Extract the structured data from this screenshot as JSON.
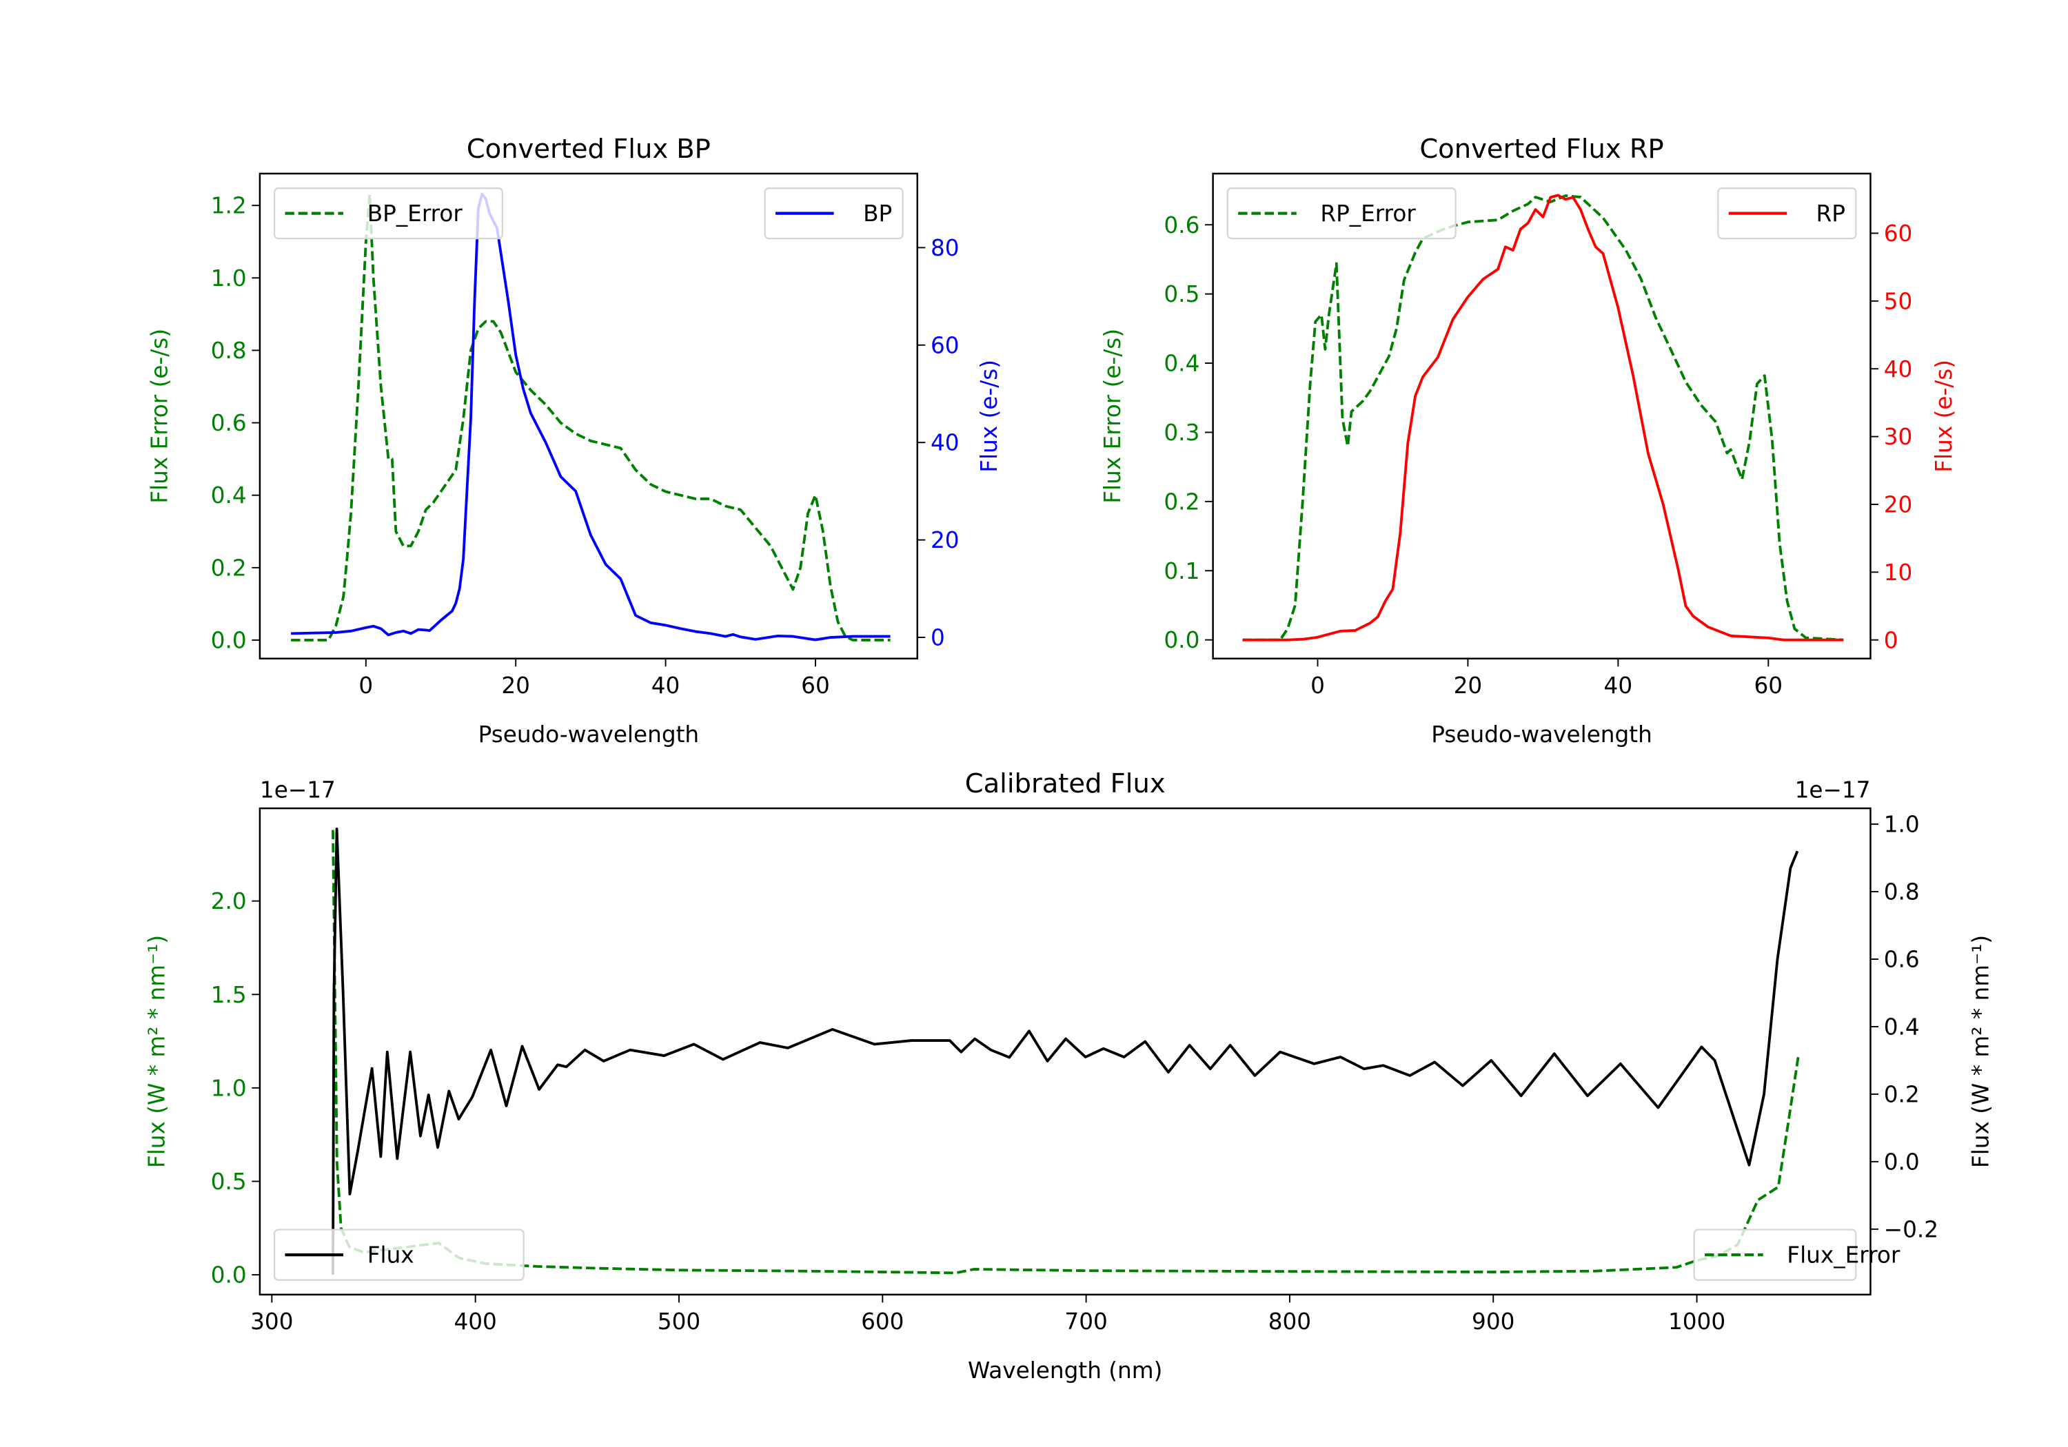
{
  "chart_data": [
    {
      "id": "bp",
      "type": "line",
      "title": "Converted Flux BP",
      "xlabel": "Pseudo-wavelength",
      "ylabel_left": "Flux Error (e-/s)",
      "ylabel_right": "Flux (e-/s)",
      "left_color": "#008000",
      "right_color": "#0000ff",
      "xlim": [
        -14.16,
        73.6
      ],
      "ylim_left": [
        -0.051,
        1.288
      ],
      "ylim_right": [
        -4.35,
        95.2
      ],
      "xticks": [
        {
          "v": 0,
          "label": "0"
        },
        {
          "v": 20,
          "label": "20"
        },
        {
          "v": 40,
          "label": "40"
        },
        {
          "v": 60,
          "label": "60"
        }
      ],
      "yticks_left": [
        {
          "v": 0,
          "label": "0.0"
        },
        {
          "v": 0.2,
          "label": "0.2"
        },
        {
          "v": 0.4,
          "label": "0.4"
        },
        {
          "v": 0.6,
          "label": "0.6"
        },
        {
          "v": 0.8,
          "label": "0.8"
        },
        {
          "v": 1.0,
          "label": "1.0"
        },
        {
          "v": 1.2,
          "label": "1.2"
        }
      ],
      "yticks_right": [
        {
          "v": 0,
          "label": "0"
        },
        {
          "v": 20,
          "label": "20"
        },
        {
          "v": 40,
          "label": "40"
        },
        {
          "v": 60,
          "label": "60"
        },
        {
          "v": 80,
          "label": "80"
        }
      ],
      "series": [
        {
          "name": "BP_Error",
          "axis": "left",
          "style": "dashed",
          "color": "#008000",
          "legend": "upper-left",
          "x": [
            -10,
            -5,
            -4,
            -3,
            -2.5,
            -2,
            -1,
            0,
            0.5,
            1,
            2,
            3,
            3.5,
            4,
            5,
            6,
            7,
            8,
            9,
            10,
            11,
            12,
            13,
            14,
            15,
            16,
            17,
            18,
            20,
            22,
            24,
            26,
            28,
            30,
            32,
            34,
            36,
            38,
            40,
            42,
            44,
            46,
            48,
            50,
            52,
            54,
            56,
            57,
            58,
            59,
            60,
            61,
            62,
            63,
            64,
            65,
            70
          ],
          "y": [
            0,
            0,
            0.04,
            0.12,
            0.23,
            0.35,
            0.7,
            1.1,
            1.23,
            1.0,
            0.7,
            0.5,
            0.5,
            0.3,
            0.26,
            0.26,
            0.3,
            0.36,
            0.38,
            0.41,
            0.44,
            0.47,
            0.61,
            0.8,
            0.86,
            0.88,
            0.88,
            0.85,
            0.74,
            0.69,
            0.65,
            0.6,
            0.57,
            0.55,
            0.54,
            0.53,
            0.47,
            0.43,
            0.41,
            0.4,
            0.39,
            0.39,
            0.37,
            0.36,
            0.31,
            0.26,
            0.18,
            0.14,
            0.2,
            0.35,
            0.4,
            0.3,
            0.15,
            0.05,
            0.01,
            0,
            0
          ]
        },
        {
          "name": "BP",
          "axis": "right",
          "style": "solid",
          "color": "#0000ff",
          "legend": "upper-right",
          "x": [
            -10,
            -4,
            -2,
            0,
            1,
            2,
            3,
            4,
            5,
            6,
            7,
            8,
            8.5,
            10,
            11.5,
            12,
            12.5,
            13,
            14,
            14.5,
            15,
            15.5,
            16,
            16.5,
            17.5,
            19,
            20,
            21,
            22,
            24,
            26,
            28,
            30,
            32,
            34,
            36,
            38,
            40,
            42,
            44,
            46,
            48,
            49,
            50,
            52,
            55,
            57,
            60,
            62,
            65,
            70
          ],
          "y": [
            0.8,
            1,
            1.3,
            2,
            2.3,
            1.8,
            0.5,
            1,
            1.3,
            0.8,
            1.6,
            1.5,
            1.4,
            3.5,
            5.4,
            7,
            10,
            16,
            45,
            69,
            88,
            91,
            90,
            87,
            84,
            69,
            58,
            51,
            46,
            40,
            33,
            30,
            21,
            15,
            12,
            4.5,
            3,
            2.5,
            1.8,
            1.2,
            0.8,
            0.2,
            0.6,
            0.1,
            -0.4,
            0.3,
            0.2,
            -0.5,
            0,
            0.2,
            0.2
          ]
        }
      ]
    },
    {
      "id": "rp",
      "type": "line",
      "title": "Converted Flux RP",
      "xlabel": "Pseudo-wavelength",
      "ylabel_left": "Flux Error (e-/s)",
      "ylabel_right": "Flux (e-/s)",
      "left_color": "#008000",
      "right_color": "#ff0000",
      "xlim": [
        -13.94,
        73.6
      ],
      "ylim_left": [
        -0.027,
        0.674
      ],
      "ylim_right": [
        -2.75,
        68.8
      ],
      "xticks": [
        {
          "v": 0,
          "label": "0"
        },
        {
          "v": 20,
          "label": "20"
        },
        {
          "v": 40,
          "label": "40"
        },
        {
          "v": 60,
          "label": "60"
        }
      ],
      "yticks_left": [
        {
          "v": 0,
          "label": "0.0"
        },
        {
          "v": 0.1,
          "label": "0.1"
        },
        {
          "v": 0.2,
          "label": "0.2"
        },
        {
          "v": 0.3,
          "label": "0.3"
        },
        {
          "v": 0.4,
          "label": "0.4"
        },
        {
          "v": 0.5,
          "label": "0.5"
        },
        {
          "v": 0.6,
          "label": "0.6"
        }
      ],
      "yticks_right": [
        {
          "v": 0,
          "label": "0"
        },
        {
          "v": 10,
          "label": "10"
        },
        {
          "v": 20,
          "label": "20"
        },
        {
          "v": 30,
          "label": "30"
        },
        {
          "v": 40,
          "label": "40"
        },
        {
          "v": 50,
          "label": "50"
        },
        {
          "v": 60,
          "label": "60"
        }
      ],
      "series": [
        {
          "name": "RP_Error",
          "axis": "left",
          "style": "dashed",
          "color": "#008000",
          "legend": "upper-left",
          "x": [
            -10,
            -5,
            -4,
            -3,
            -2,
            -1,
            -0.3,
            0.5,
            1,
            1.5,
            2.5,
            3.3,
            4,
            4.5,
            6,
            7,
            8,
            9.5,
            10.5,
            11.5,
            13,
            14,
            17,
            20,
            24,
            26,
            28,
            29,
            31,
            33,
            35,
            38,
            41,
            43,
            45,
            47,
            49,
            51,
            53,
            54.5,
            55,
            56.5,
            57.5,
            58.5,
            59.5,
            60.5,
            61.5,
            62.5,
            63.5,
            65,
            70
          ],
          "y": [
            0,
            0,
            0.016,
            0.05,
            0.2,
            0.37,
            0.46,
            0.47,
            0.42,
            0.47,
            0.544,
            0.32,
            0.28,
            0.33,
            0.345,
            0.36,
            0.38,
            0.41,
            0.45,
            0.52,
            0.56,
            0.58,
            0.595,
            0.604,
            0.607,
            0.62,
            0.63,
            0.64,
            0.633,
            0.642,
            0.64,
            0.61,
            0.564,
            0.523,
            0.466,
            0.42,
            0.373,
            0.34,
            0.315,
            0.27,
            0.275,
            0.232,
            0.287,
            0.37,
            0.382,
            0.29,
            0.14,
            0.056,
            0.016,
            0.003,
            0
          ]
        },
        {
          "name": "RP",
          "axis": "right",
          "style": "solid",
          "color": "#ff0000",
          "legend": "upper-right",
          "x": [
            -10,
            -4,
            -2,
            0,
            3,
            5,
            7,
            8,
            9,
            10,
            11,
            12,
            13,
            14,
            16,
            18,
            20,
            22,
            24,
            25,
            26,
            27,
            28,
            29,
            30,
            31,
            32,
            33,
            34,
            35,
            36,
            37,
            38,
            40,
            42,
            44,
            46,
            48,
            49,
            50,
            52,
            55,
            60,
            62,
            70
          ],
          "y": [
            0,
            0,
            0.1,
            0.4,
            1.3,
            1.4,
            2.5,
            3.4,
            5.7,
            7.5,
            15.8,
            29,
            36,
            38.8,
            41.7,
            47.3,
            50.6,
            53.2,
            54.7,
            58,
            57.5,
            60.6,
            61.5,
            63.5,
            62.4,
            65.3,
            65.6,
            65,
            65.3,
            63.5,
            60.6,
            58,
            57,
            49,
            39,
            27.5,
            20,
            10.4,
            5,
            3.5,
            1.9,
            0.6,
            0.3,
            0,
            0
          ]
        }
      ]
    },
    {
      "id": "cal",
      "type": "line",
      "title": "Calibrated Flux",
      "xlabel": "Wavelength (nm)",
      "ylabel_left": "Flux (W * m² * nm⁻¹)",
      "ylabel_right": "Flux (W * m² * nm⁻¹)",
      "offset_left": "1e−17",
      "offset_right": "1e−17",
      "left_color": "#008000",
      "right_color": "#000000",
      "xlim": [
        294.1,
        1085.3
      ],
      "ylim_left": [
        -0.106,
        2.496
      ],
      "ylim_right": [
        -0.394,
        1.047
      ],
      "xticks": [
        {
          "v": 300,
          "label": "300"
        },
        {
          "v": 400,
          "label": "400"
        },
        {
          "v": 500,
          "label": "500"
        },
        {
          "v": 600,
          "label": "600"
        },
        {
          "v": 700,
          "label": "700"
        },
        {
          "v": 800,
          "label": "800"
        },
        {
          "v": 900,
          "label": "900"
        },
        {
          "v": 1000,
          "label": "1000"
        }
      ],
      "yticks_left": [
        {
          "v": 0,
          "label": "0.0"
        },
        {
          "v": 0.5,
          "label": "0.5"
        },
        {
          "v": 1.0,
          "label": "1.0"
        },
        {
          "v": 1.5,
          "label": "1.5"
        },
        {
          "v": 2.0,
          "label": "2.0"
        }
      ],
      "yticks_right": [
        {
          "v": -0.2,
          "label": "−0.2"
        },
        {
          "v": 0,
          "label": "0.0"
        },
        {
          "v": 0.2,
          "label": "0.2"
        },
        {
          "v": 0.4,
          "label": "0.4"
        },
        {
          "v": 0.6,
          "label": "0.6"
        },
        {
          "v": 0.8,
          "label": "0.8"
        },
        {
          "v": 1.0,
          "label": "1.0"
        }
      ],
      "series": [
        {
          "name": "Flux_Error",
          "axis": "left",
          "style": "dashed",
          "color": "#008000",
          "legend": "lower-right",
          "x": [
            330,
            331,
            332,
            334,
            338,
            345,
            360,
            382,
            392,
            405,
            430,
            460,
            500,
            560,
            600,
            636,
            645,
            700,
            800,
            900,
            950,
            990,
            1000,
            1010,
            1020,
            1030,
            1040,
            1045,
            1050
          ],
          "y": [
            2.38,
            1.5,
            0.6,
            0.25,
            0.15,
            0.12,
            0.14,
            0.17,
            0.09,
            0.06,
            0.045,
            0.035,
            0.025,
            0.02,
            0.015,
            0.01,
            0.03,
            0.022,
            0.018,
            0.015,
            0.02,
            0.04,
            0.077,
            0.1,
            0.16,
            0.4,
            0.47,
            0.82,
            1.18
          ]
        },
        {
          "name": "Flux",
          "axis": "right",
          "style": "solid",
          "color": "#000000",
          "legend": "lower-left",
          "x": [
            330,
            330.5,
            331.9,
            335,
            338.3,
            342.2,
            349.2,
            353.5,
            356.7,
            361.6,
            368,
            373,
            377,
            381.5,
            387,
            391.8,
            398.5,
            407.6,
            415.2,
            423,
            431.3,
            440.4,
            444.7,
            453.8,
            463,
            476,
            492.7,
            507.3,
            521.6,
            539.8,
            553.5,
            575.4,
            596,
            614.3,
            633,
            638.6,
            645.3,
            653.2,
            662.3,
            672,
            681,
            690,
            699.7,
            708.5,
            718.6,
            729,
            740.4,
            750.8,
            761,
            770.8,
            782.9,
            795.3,
            812,
            825,
            836.5,
            846,
            859,
            871.2,
            885,
            899,
            913.7,
            930,
            946.3,
            962.5,
            981,
            1002.3,
            1008.8,
            1025.7,
            1033,
            1039.6,
            1046,
            1049.4
          ],
          "y": [
            -0.335,
            0.5,
            0.986,
            0.5,
            -0.096,
            0.031,
            0.276,
            0.015,
            0.325,
            0.009,
            0.325,
            0.076,
            0.198,
            0.042,
            0.209,
            0.126,
            0.192,
            0.331,
            0.165,
            0.342,
            0.214,
            0.287,
            0.281,
            0.331,
            0.298,
            0.331,
            0.314,
            0.348,
            0.303,
            0.353,
            0.337,
            0.392,
            0.348,
            0.359,
            0.359,
            0.325,
            0.364,
            0.331,
            0.309,
            0.387,
            0.298,
            0.364,
            0.31,
            0.335,
            0.31,
            0.356,
            0.265,
            0.345,
            0.275,
            0.345,
            0.255,
            0.325,
            0.29,
            0.31,
            0.275,
            0.285,
            0.255,
            0.295,
            0.225,
            0.3,
            0.195,
            0.32,
            0.195,
            0.29,
            0.16,
            0.34,
            0.3,
            -0.01,
            0.2,
            0.6,
            0.87,
            0.92
          ]
        }
      ]
    }
  ]
}
